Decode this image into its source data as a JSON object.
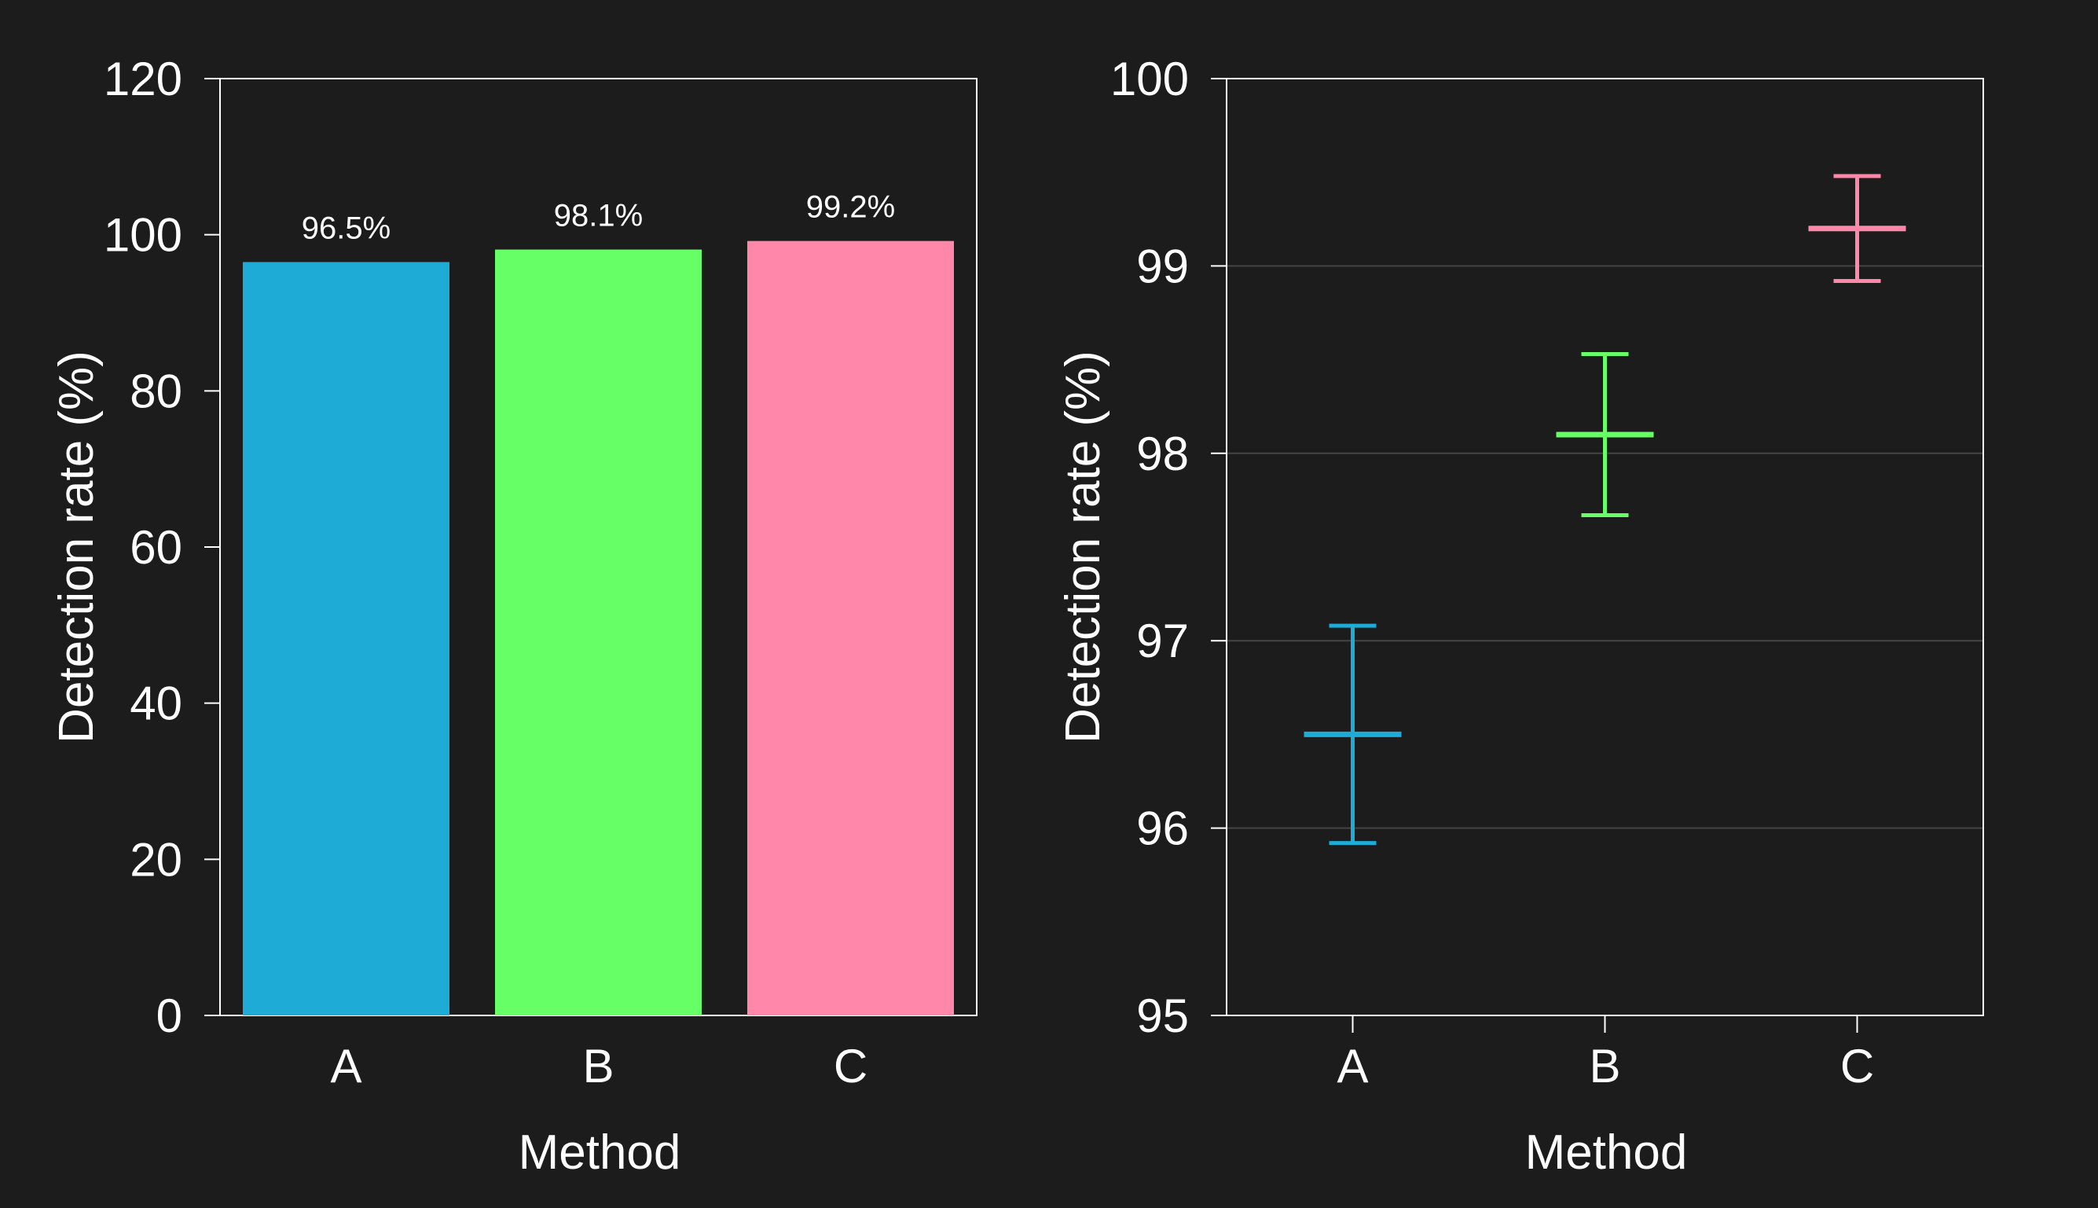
{
  "colors": {
    "background": "#1c1c1c",
    "axis": "#ffffff",
    "grid": "#444444",
    "series": [
      "#1eabd6",
      "#66ff66",
      "#ff88aa"
    ]
  },
  "chart_data": [
    {
      "type": "bar",
      "categories": [
        "A",
        "B",
        "C"
      ],
      "values": [
        96.5,
        98.1,
        99.2
      ],
      "data_labels": [
        "96.5%",
        "98.1%",
        "99.2%"
      ],
      "xlabel": "Method",
      "ylabel": "Detection rate (%)",
      "ylim": [
        0,
        120
      ],
      "yticks": [
        0,
        20,
        40,
        60,
        80,
        100,
        120
      ],
      "grid": false
    },
    {
      "type": "scatter",
      "categories": [
        "A",
        "B",
        "C"
      ],
      "values": [
        96.5,
        98.1,
        99.2
      ],
      "error_low": [
        95.92,
        97.67,
        98.92
      ],
      "error_high": [
        97.08,
        98.53,
        99.48
      ],
      "xlabel": "Method",
      "ylabel": "Detection rate (%)",
      "ylim": [
        95,
        100
      ],
      "yticks": [
        95,
        96,
        97,
        98,
        99,
        100
      ],
      "grid": true
    }
  ]
}
